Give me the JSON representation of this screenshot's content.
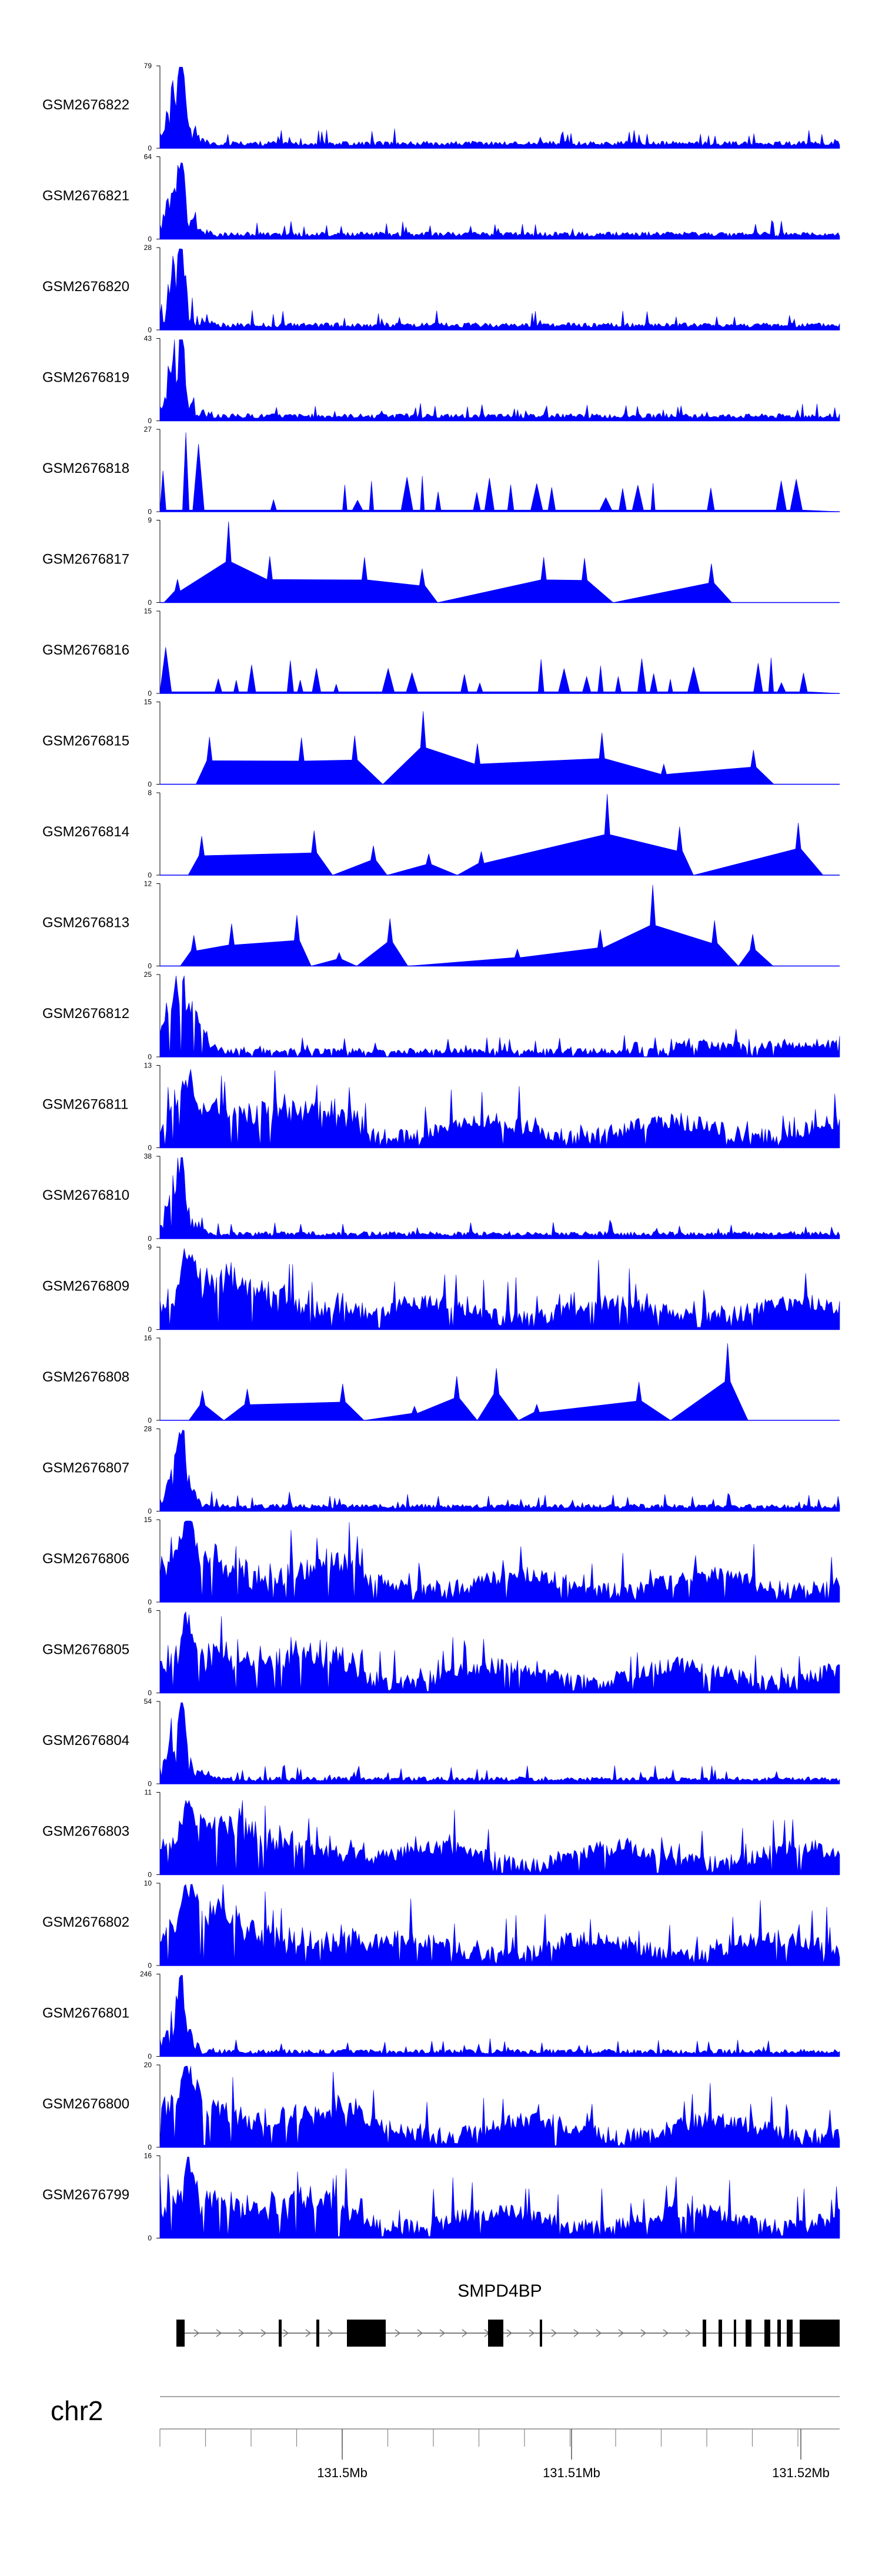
{
  "chart_data": {
    "type": "area",
    "title": "",
    "xlabel": "",
    "ylabel": "",
    "fill_color": "#0000FF",
    "chromosome": "chr2",
    "x_ticks": [
      "131.5Mb",
      "131.51Mb",
      "131.52Mb"
    ],
    "gene": {
      "name": "SMPD4BP",
      "color": "#000000",
      "strand": "+"
    },
    "tracks": [
      {
        "name": "GSM2676822",
        "ymax": "79",
        "ymin": "0",
        "style": "dense",
        "peak": 1.0,
        "seed": 11
      },
      {
        "name": "GSM2676821",
        "ymax": "64",
        "ymin": "0",
        "style": "dense",
        "peak": 0.9,
        "seed": 12
      },
      {
        "name": "GSM2676820",
        "ymax": "28",
        "ymin": "0",
        "style": "dense",
        "peak": 1.0,
        "seed": 13
      },
      {
        "name": "GSM2676819",
        "ymax": "43",
        "ymin": "0",
        "style": "dense",
        "peak": 1.0,
        "seed": 14
      },
      {
        "name": "GSM2676818",
        "ymax": "27",
        "ymin": "0",
        "style": "semisparse",
        "peak": 1.0,
        "seed": 15
      },
      {
        "name": "GSM2676817",
        "ymax": "9",
        "ymin": "0",
        "style": "sparse",
        "peak": 1.0,
        "seed": 16
      },
      {
        "name": "GSM2676816",
        "ymax": "15",
        "ymin": "0",
        "style": "semisparse",
        "peak": 1.0,
        "seed": 17
      },
      {
        "name": "GSM2676815",
        "ymax": "15",
        "ymin": "0",
        "style": "sparse",
        "peak": 0.9,
        "seed": 18
      },
      {
        "name": "GSM2676814",
        "ymax": "8",
        "ymin": "0",
        "style": "sparse",
        "peak": 1.0,
        "seed": 19
      },
      {
        "name": "GSM2676813",
        "ymax": "12",
        "ymin": "0",
        "style": "sparse",
        "peak": 1.0,
        "seed": 20
      },
      {
        "name": "GSM2676812",
        "ymax": "25",
        "ymin": "0",
        "style": "medium",
        "peak": 1.0,
        "seed": 21
      },
      {
        "name": "GSM2676811",
        "ymax": "13",
        "ymin": "0",
        "style": "busy",
        "peak": 0.95,
        "seed": 22
      },
      {
        "name": "GSM2676810",
        "ymax": "38",
        "ymin": "0",
        "style": "dense",
        "peak": 1.0,
        "seed": 23
      },
      {
        "name": "GSM2676809",
        "ymax": "9",
        "ymin": "0",
        "style": "busy",
        "peak": 1.0,
        "seed": 24
      },
      {
        "name": "GSM2676808",
        "ymax": "16",
        "ymin": "0",
        "style": "sparse",
        "peak": 0.95,
        "seed": 25
      },
      {
        "name": "GSM2676807",
        "ymax": "28",
        "ymin": "0",
        "style": "dense",
        "peak": 1.0,
        "seed": 26
      },
      {
        "name": "GSM2676806",
        "ymax": "15",
        "ymin": "0",
        "style": "busy",
        "peak": 1.0,
        "seed": 27
      },
      {
        "name": "GSM2676805",
        "ymax": "6",
        "ymin": "0",
        "style": "busy",
        "peak": 0.95,
        "seed": 28
      },
      {
        "name": "GSM2676804",
        "ymax": "54",
        "ymin": "0",
        "style": "dense",
        "peak": 0.9,
        "seed": 29
      },
      {
        "name": "GSM2676803",
        "ymax": "11",
        "ymin": "0",
        "style": "busy",
        "peak": 0.85,
        "seed": 30
      },
      {
        "name": "GSM2676802",
        "ymax": "10",
        "ymin": "0",
        "style": "busy",
        "peak": 0.95,
        "seed": 31
      },
      {
        "name": "GSM2676801",
        "ymax": "246",
        "ymin": "0",
        "style": "dense",
        "peak": 0.85,
        "seed": 32
      },
      {
        "name": "GSM2676800",
        "ymax": "20",
        "ymin": "0",
        "style": "busy",
        "peak": 1.0,
        "seed": 33
      },
      {
        "name": "GSM2676799",
        "ymax": "16",
        "ymin": "0",
        "style": "busy",
        "peak": 0.95,
        "seed": 34
      }
    ]
  }
}
